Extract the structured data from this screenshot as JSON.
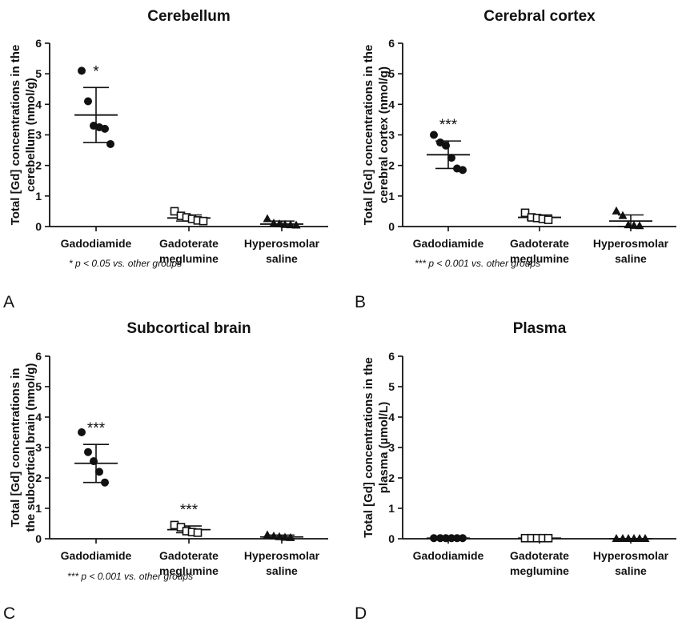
{
  "chart_data": [
    {
      "type": "scatter",
      "panel_letter": "A",
      "title": "Cerebellum",
      "ylabel": [
        "Total [Gd] concentrations in the",
        "cerebellum (nmol/g)"
      ],
      "ylim": [
        0,
        6
      ],
      "yticks": [
        0,
        1,
        2,
        3,
        4,
        5,
        6
      ],
      "categories": [
        [
          "Gadodiamide"
        ],
        [
          "Gadoterate",
          "meglumine"
        ],
        [
          "Hyperosmolar",
          "saline"
        ]
      ],
      "groups": [
        {
          "marker": "filled-circle",
          "points": [
            5.1,
            4.1,
            3.3,
            3.25,
            3.2,
            2.7
          ],
          "mean": 3.65,
          "sd": [
            2.75,
            4.55
          ],
          "significance": "*"
        },
        {
          "marker": "open-square",
          "points": [
            0.5,
            0.35,
            0.3,
            0.25,
            0.2,
            0.18
          ],
          "mean": 0.28,
          "sd": [
            0.18,
            0.38
          ],
          "significance": ""
        },
        {
          "marker": "filled-triangle",
          "points": [
            0.25,
            0.1,
            0.08,
            0.06,
            0.05,
            0.04
          ],
          "mean": 0.08,
          "sd": [
            0.0,
            0.18
          ],
          "significance": ""
        }
      ],
      "footnote": "* p < 0.05 vs. other groups"
    },
    {
      "type": "scatter",
      "panel_letter": "B",
      "title": "Cerebral cortex",
      "ylabel": [
        "Total [Gd] concentrations in the",
        "cerebral cortex (nmol/g)"
      ],
      "ylim": [
        0,
        6
      ],
      "yticks": [
        0,
        1,
        2,
        3,
        4,
        5,
        6
      ],
      "categories": [
        [
          "Gadodiamide"
        ],
        [
          "Gadoterate",
          "meglumine"
        ],
        [
          "Hyperosmolar",
          "saline"
        ]
      ],
      "groups": [
        {
          "marker": "filled-circle",
          "points": [
            3.0,
            2.75,
            2.65,
            2.25,
            1.9,
            1.85
          ],
          "mean": 2.35,
          "sd": [
            1.9,
            2.8
          ],
          "significance": "***"
        },
        {
          "marker": "open-square",
          "points": [
            0.45,
            0.3,
            0.28,
            0.25,
            0.22
          ],
          "mean": 0.3,
          "sd": [
            0.22,
            0.38
          ],
          "significance": ""
        },
        {
          "marker": "filled-triangle",
          "points": [
            0.5,
            0.35,
            0.05,
            0.03,
            0.02
          ],
          "mean": 0.18,
          "sd": [
            0.0,
            0.38
          ],
          "significance": ""
        }
      ],
      "footnote": "*** p < 0.001 vs. other groups"
    },
    {
      "type": "scatter",
      "panel_letter": "C",
      "title": "Subcortical brain",
      "ylabel": [
        "Total [Gd] concentrations in",
        "the subcortical brain (nmol/g)"
      ],
      "ylim": [
        0,
        6
      ],
      "yticks": [
        0,
        1,
        2,
        3,
        4,
        5,
        6
      ],
      "categories": [
        [
          "Gadodiamide"
        ],
        [
          "Gadoterate",
          "meglumine"
        ],
        [
          "Hyperosmolar",
          "saline"
        ]
      ],
      "groups": [
        {
          "marker": "filled-circle",
          "points": [
            3.5,
            2.85,
            2.55,
            2.2,
            1.85
          ],
          "mean": 2.48,
          "sd": [
            1.85,
            3.1
          ],
          "significance": "***"
        },
        {
          "marker": "open-square",
          "points": [
            0.45,
            0.38,
            0.25,
            0.22,
            0.2
          ],
          "mean": 0.3,
          "sd": [
            0.2,
            0.42
          ],
          "significance": "***"
        },
        {
          "marker": "filled-triangle",
          "points": [
            0.12,
            0.08,
            0.06,
            0.04,
            0.03
          ],
          "mean": 0.06,
          "sd": [
            0.0,
            0.12
          ],
          "significance": ""
        }
      ],
      "footnote": "*** p < 0.001 vs. other groups"
    },
    {
      "type": "scatter",
      "panel_letter": "D",
      "title": "Plasma",
      "ylabel": [
        "Total [Gd] concentrations in the",
        "plasma (µmol/L)"
      ],
      "ylim": [
        0,
        6
      ],
      "yticks": [
        0,
        1,
        2,
        3,
        4,
        5,
        6
      ],
      "categories": [
        [
          "Gadodiamide"
        ],
        [
          "Gadoterate",
          "meglumine"
        ],
        [
          "Hyperosmolar",
          "saline"
        ]
      ],
      "groups": [
        {
          "marker": "filled-circle",
          "points": [
            0.02,
            0.02,
            0.02,
            0.02,
            0.02,
            0.02
          ],
          "mean": 0.02,
          "sd": [
            0.02,
            0.02
          ],
          "significance": ""
        },
        {
          "marker": "open-square",
          "points": [
            0.02,
            0.02,
            0.02,
            0.02,
            0.02
          ],
          "mean": 0.02,
          "sd": [
            0.02,
            0.02
          ],
          "significance": ""
        },
        {
          "marker": "filled-triangle",
          "points": [
            0.0,
            0.0,
            0.0,
            0.0,
            0.0,
            0.0
          ],
          "mean": 0.0,
          "sd": [
            0.0,
            0.0
          ],
          "significance": ""
        }
      ],
      "footnote": ""
    }
  ]
}
